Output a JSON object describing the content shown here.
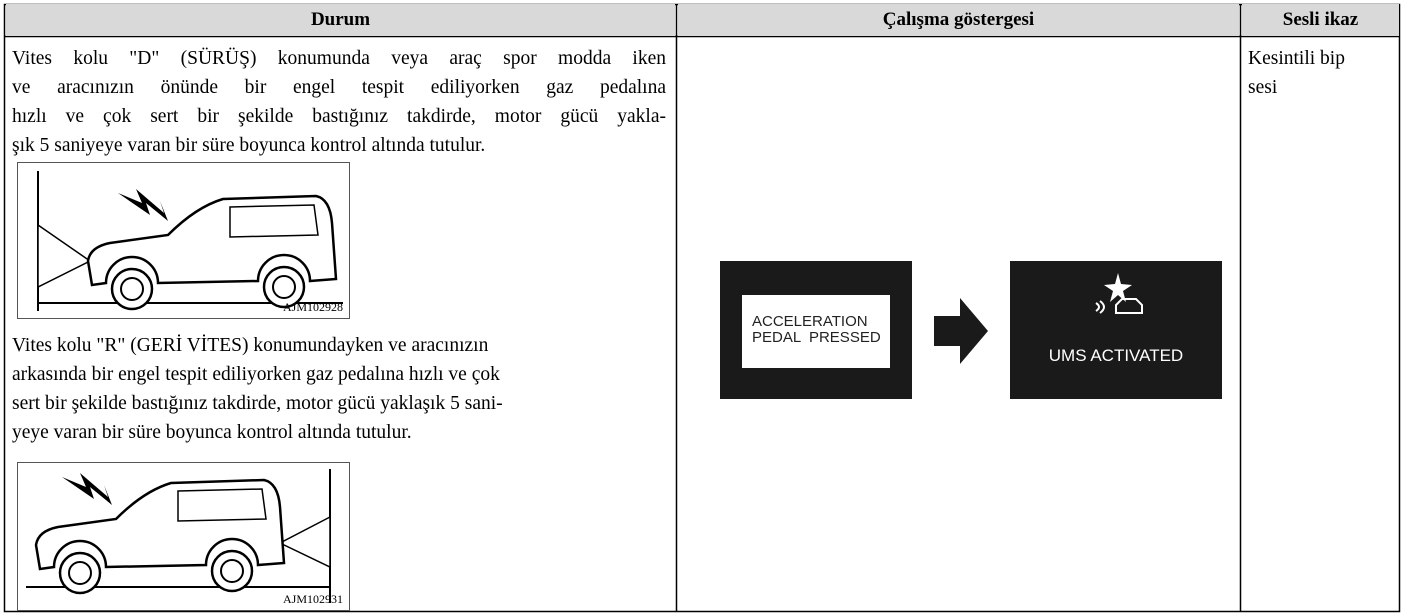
{
  "table": {
    "headers": [
      "Durum",
      "Çalışma göstergesi",
      "Sesli ikaz"
    ],
    "situation": {
      "paragraphs": [
        {
          "lines": [
            "Vites kolu \"D\" (SÜRÜŞ) konumunda veya araç spor modda iken",
            "ve aracınızın önünde bir engel tespit ediliyorken gaz pedalına",
            "hızlı ve çok sert bir şekilde bastığınız takdirde, motor gücü yakla-",
            "şık 5 saniyeye varan bir süre boyunca kontrol altında tutulur."
          ]
        },
        {
          "lines": [
            "Vites kolu \"R\" (GERİ VİTES) konumundayken ve aracınızın",
            "arkasında bir engel tespit ediliyorken gaz pedalına hızlı ve çok",
            "sert bir şekilde bastığınız takdirde, motor gücü yaklaşık 5 sani-",
            "yeye varan bir süre boyunca kontrol altında tutulur."
          ]
        }
      ],
      "figures": [
        "AJM102928",
        "AJM102931"
      ]
    },
    "indicator": {
      "before": [
        "ACCELERATION",
        "PEDAL  PRESSED"
      ],
      "after": "UMS ACTIVATED"
    },
    "sound": "Kesintili bip sesi"
  }
}
